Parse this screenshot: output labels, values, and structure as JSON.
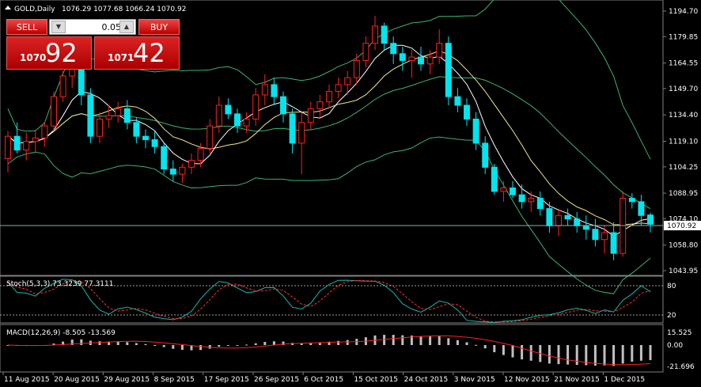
{
  "header": {
    "symbol_info": "GOLD,Daily",
    "ohlc": "1076.29 1077.68 1066.24 1070.92",
    "collapse_icon": "triangle-up-icon"
  },
  "trade_panel": {
    "sell_label": "SELL",
    "buy_label": "BUY",
    "lot": "0.05",
    "sell_small": "1070",
    "sell_big": "92",
    "buy_small": "1071",
    "buy_big": "42"
  },
  "price_axis": {
    "labels": [
      "1194.70",
      "1179.85",
      "1164.55",
      "1149.70",
      "1134.40",
      "1119.10",
      "1104.25",
      "1088.95",
      "1074.10",
      "1058.80",
      "1043.95"
    ],
    "current": "1070.92"
  },
  "stoch": {
    "label": "Stoch(5,3,3) 73.3239 77.3111",
    "levels": [
      "80",
      "20"
    ]
  },
  "macd": {
    "label": "MACD(12,26,9) -8.505 -13.569",
    "levels": [
      "15.525",
      "0.00",
      "-21.696"
    ]
  },
  "time_axis": [
    "11 Aug 2015",
    "20 Aug 2015",
    "29 Aug 2015",
    "8 Sep 2015",
    "17 Sep 2015",
    "26 Sep 2015",
    "6 Oct 2015",
    "15 Oct 2015",
    "24 Oct 2015",
    "3 Nov 2015",
    "12 Nov 2015",
    "21 Nov 2015",
    "1 Dec 2015"
  ],
  "colors": {
    "bull": "#ffffff",
    "bear": "#00e5ee",
    "up_candle_border": "#ff2020",
    "bands": "#3cb371",
    "ma_fast": "#ffffff",
    "ma_slow": "#f0e68c",
    "stoch_main": "#20b2aa",
    "stoch_signal": "#ff3030",
    "macd_hist": "#c0c0c0",
    "macd_signal": "#ff2020"
  },
  "chart_data": {
    "type": "candlestick",
    "ohlc": [
      [
        1109,
        1125,
        1101,
        1122
      ],
      [
        1122,
        1130,
        1112,
        1114
      ],
      [
        1114,
        1124,
        1108,
        1119
      ],
      [
        1119,
        1126,
        1113,
        1121
      ],
      [
        1121,
        1130,
        1116,
        1128
      ],
      [
        1128,
        1148,
        1125,
        1145
      ],
      [
        1145,
        1160,
        1142,
        1157
      ],
      [
        1157,
        1170,
        1150,
        1164
      ],
      [
        1164,
        1168,
        1140,
        1146
      ],
      [
        1146,
        1150,
        1118,
        1122
      ],
      [
        1122,
        1136,
        1118,
        1132
      ],
      [
        1132,
        1140,
        1127,
        1134
      ],
      [
        1134,
        1142,
        1130,
        1138
      ],
      [
        1138,
        1143,
        1126,
        1130
      ],
      [
        1130,
        1133,
        1118,
        1122
      ],
      [
        1122,
        1126,
        1115,
        1120
      ],
      [
        1120,
        1125,
        1112,
        1116
      ],
      [
        1116,
        1118,
        1100,
        1103
      ],
      [
        1103,
        1108,
        1096,
        1100
      ],
      [
        1100,
        1106,
        1095,
        1104
      ],
      [
        1104,
        1112,
        1100,
        1108
      ],
      [
        1108,
        1118,
        1104,
        1115
      ],
      [
        1115,
        1132,
        1112,
        1128
      ],
      [
        1128,
        1145,
        1124,
        1140
      ],
      [
        1140,
        1144,
        1132,
        1135
      ],
      [
        1135,
        1138,
        1124,
        1128
      ],
      [
        1128,
        1136,
        1124,
        1132
      ],
      [
        1132,
        1150,
        1128,
        1146
      ],
      [
        1146,
        1158,
        1140,
        1152
      ],
      [
        1152,
        1156,
        1140,
        1145
      ],
      [
        1145,
        1148,
        1130,
        1135
      ],
      [
        1135,
        1138,
        1112,
        1118
      ],
      [
        1118,
        1136,
        1100,
        1130
      ],
      [
        1130,
        1142,
        1126,
        1138
      ],
      [
        1138,
        1146,
        1132,
        1142
      ],
      [
        1142,
        1152,
        1138,
        1148
      ],
      [
        1148,
        1156,
        1144,
        1152
      ],
      [
        1152,
        1160,
        1146,
        1156
      ],
      [
        1156,
        1170,
        1152,
        1166
      ],
      [
        1166,
        1180,
        1162,
        1176
      ],
      [
        1176,
        1192,
        1172,
        1186
      ],
      [
        1186,
        1188,
        1172,
        1176
      ],
      [
        1176,
        1180,
        1164,
        1170
      ],
      [
        1170,
        1174,
        1160,
        1166
      ],
      [
        1166,
        1172,
        1156,
        1168
      ],
      [
        1168,
        1174,
        1160,
        1164
      ],
      [
        1164,
        1172,
        1158,
        1168
      ],
      [
        1168,
        1184,
        1164,
        1176
      ],
      [
        1176,
        1180,
        1140,
        1145
      ],
      [
        1145,
        1150,
        1136,
        1140
      ],
      [
        1140,
        1144,
        1128,
        1132
      ],
      [
        1132,
        1136,
        1114,
        1118
      ],
      [
        1118,
        1122,
        1100,
        1104
      ],
      [
        1104,
        1106,
        1088,
        1090
      ],
      [
        1090,
        1096,
        1084,
        1092
      ],
      [
        1092,
        1096,
        1086,
        1088
      ],
      [
        1088,
        1094,
        1080,
        1084
      ],
      [
        1084,
        1090,
        1078,
        1086
      ],
      [
        1086,
        1090,
        1076,
        1080
      ],
      [
        1080,
        1084,
        1066,
        1070
      ],
      [
        1070,
        1080,
        1064,
        1076
      ],
      [
        1076,
        1080,
        1070,
        1074
      ],
      [
        1074,
        1078,
        1066,
        1070
      ],
      [
        1070,
        1076,
        1062,
        1068
      ],
      [
        1068,
        1074,
        1058,
        1062
      ],
      [
        1062,
        1070,
        1054,
        1066
      ],
      [
        1066,
        1072,
        1050,
        1054
      ],
      [
        1054,
        1090,
        1052,
        1086
      ],
      [
        1086,
        1089,
        1080,
        1084
      ],
      [
        1084,
        1088,
        1070,
        1076
      ],
      [
        1076.29,
        1077.68,
        1066.24,
        1070.92
      ]
    ]
  }
}
